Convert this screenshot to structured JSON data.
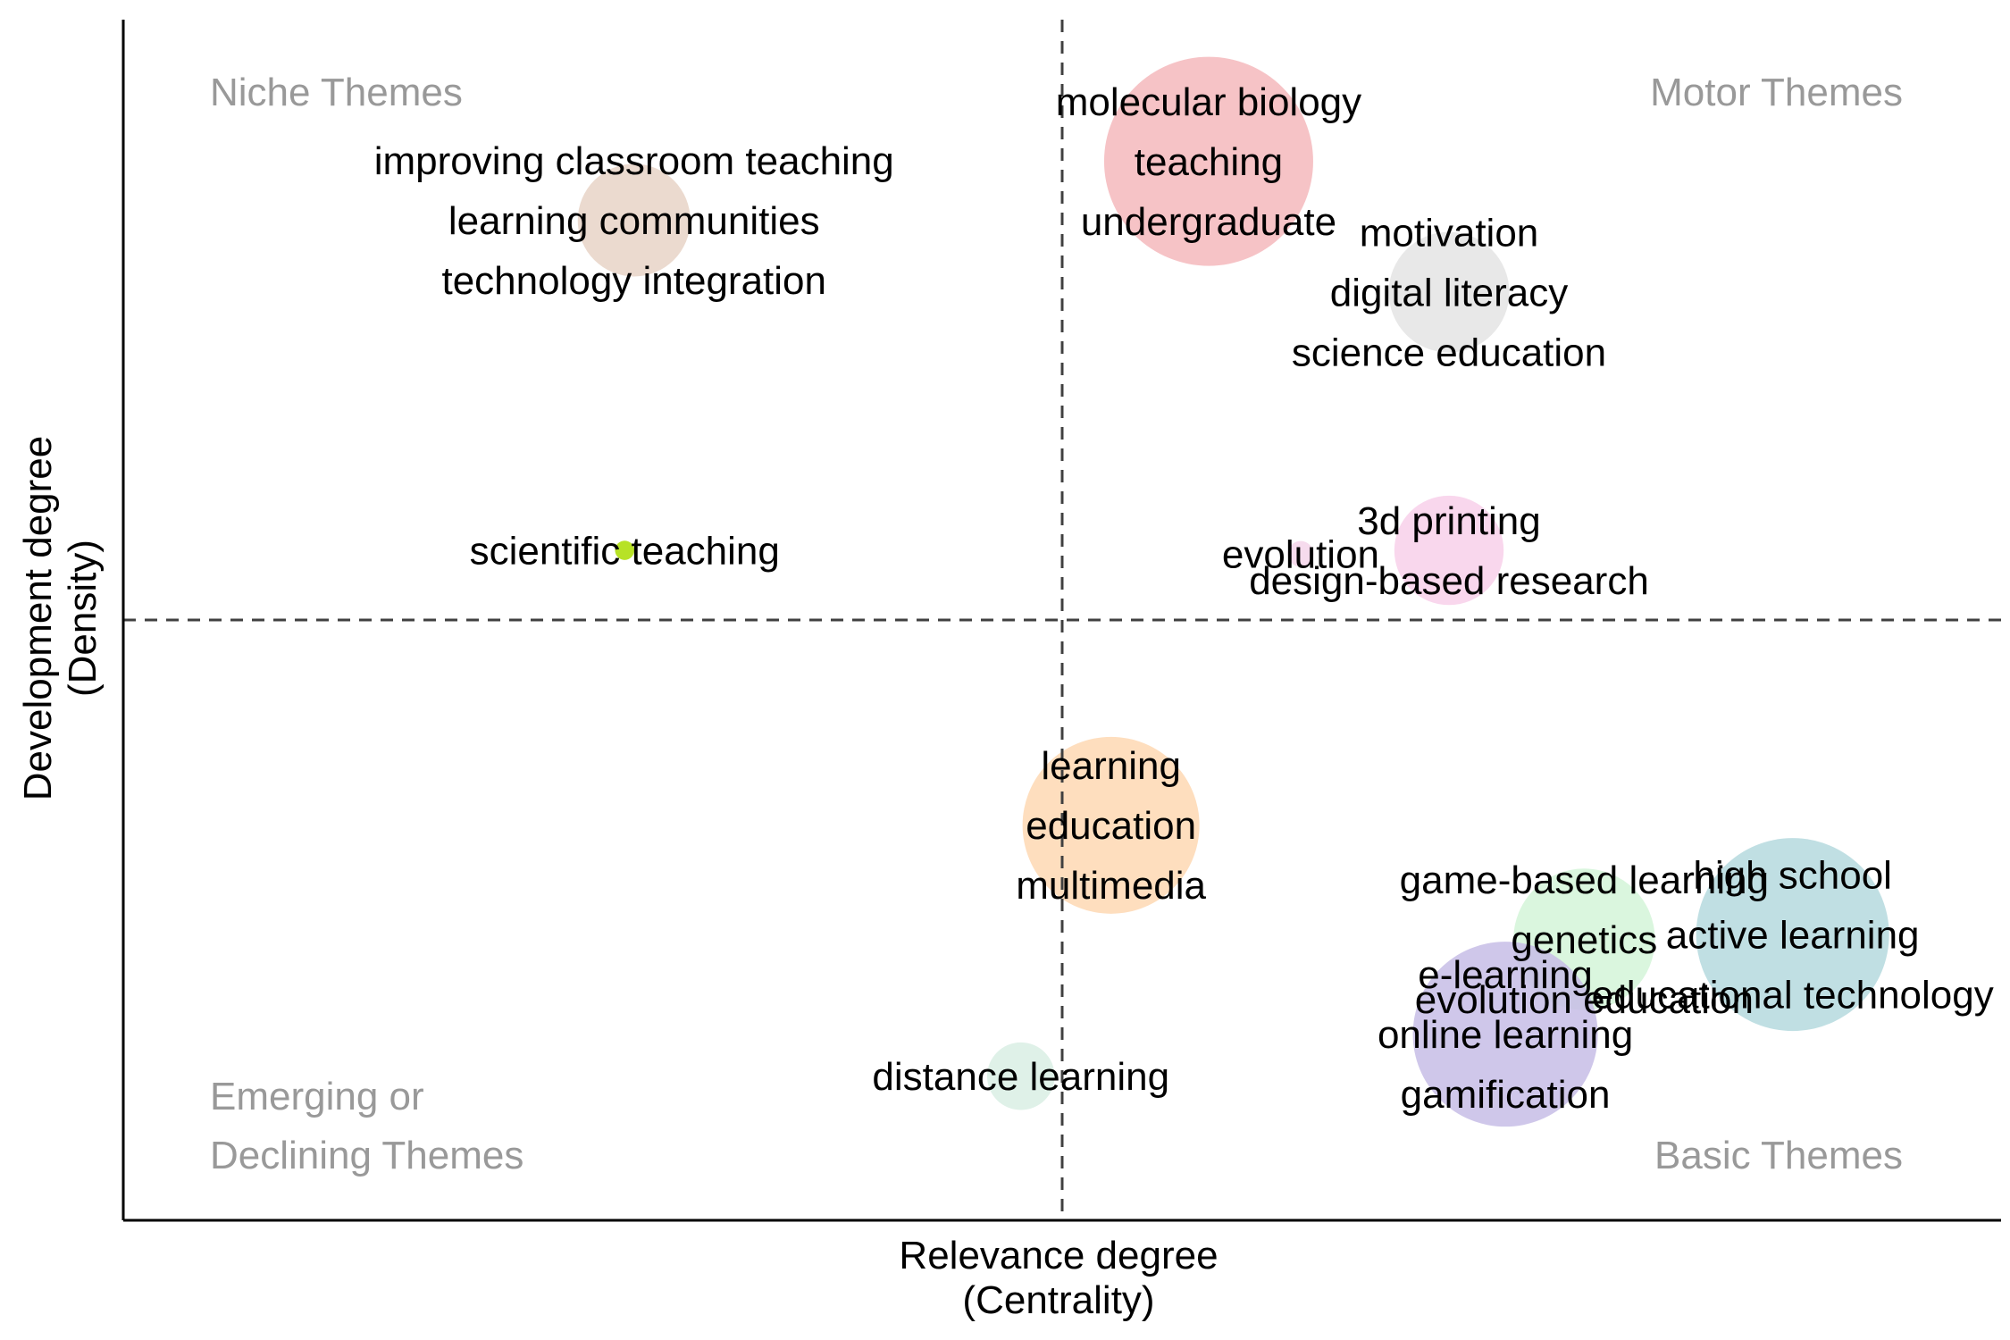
{
  "chart_data": {
    "type": "scatter",
    "title": "",
    "xlabel": [
      "Relevance degree",
      "(Centrality)"
    ],
    "ylabel": [
      "Development degree",
      "(Density)"
    ],
    "xlim": [
      0,
      100
    ],
    "ylim": [
      0,
      100
    ],
    "x_threshold": 50,
    "y_threshold": 50,
    "quadrants": {
      "top_left": [
        "Niche Themes"
      ],
      "top_right": [
        "Motor Themes"
      ],
      "bottom_left": [
        "Emerging or",
        "Declining Themes"
      ],
      "bottom_right": [
        "Basic Themes"
      ]
    },
    "colors": {
      "quadrant_label": "#999999",
      "axis": "#000000",
      "divider": "#404040"
    },
    "clusters": [
      {
        "x": 27.2,
        "y": 83.3,
        "r": 0.7,
        "color": "#e8d3c7",
        "labels": [
          "improving classroom teaching",
          "learning communities",
          "technology integration"
        ]
      },
      {
        "x": 57.8,
        "y": 88.2,
        "r": 1.3,
        "color": "#f4b9bc",
        "labels": [
          "molecular biology",
          "teaching",
          "undergraduate"
        ]
      },
      {
        "x": 70.6,
        "y": 77.3,
        "r": 0.75,
        "color": "#e4e4e4",
        "labels": [
          "motivation",
          "digital literacy",
          "science education"
        ]
      },
      {
        "x": 26.7,
        "y": 55.8,
        "r": 0.12,
        "color": "#aadd00",
        "labels": [
          "scientific teaching"
        ]
      },
      {
        "x": 62.7,
        "y": 55.5,
        "r": 0.16,
        "color": "#f5d5ea",
        "labels": [
          "evolution"
        ]
      },
      {
        "x": 70.6,
        "y": 55.8,
        "r": 0.68,
        "color": "#f8d0ea",
        "labels": [
          "3d printing",
          "design-based research"
        ]
      },
      {
        "x": 52.6,
        "y": 32.9,
        "r": 1.1,
        "color": "#fed8b3",
        "labels": [
          "learning",
          "education",
          "multimedia"
        ]
      },
      {
        "x": 77.8,
        "y": 23.4,
        "r": 0.88,
        "color": "#d3f5d8",
        "labels": [
          "game-based learning",
          "genetics",
          "evolution education"
        ]
      },
      {
        "x": 88.9,
        "y": 23.8,
        "r": 1.2,
        "color": "#b5d9de",
        "labels": [
          "high school",
          "active learning",
          "educational technology"
        ]
      },
      {
        "x": 73.6,
        "y": 15.5,
        "r": 1.15,
        "color": "#c7bde6",
        "labels": [
          "e-learning",
          "online learning",
          "gamification"
        ]
      },
      {
        "x": 47.8,
        "y": 12.0,
        "r": 0.42,
        "color": "#d9eee4",
        "labels": [
          "distance learning"
        ]
      }
    ]
  }
}
